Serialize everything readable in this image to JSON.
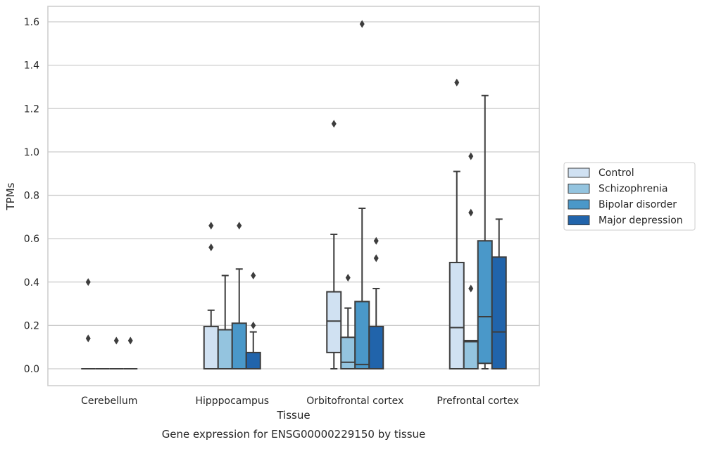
{
  "chart_data": {
    "type": "box",
    "xlabel": "Tissue",
    "ylabel": "TPMs",
    "caption": "Gene expression for ENSG00000229150 by tissue",
    "ylim": [
      -0.08,
      1.67
    ],
    "yticks": [
      0.0,
      0.2,
      0.4,
      0.6,
      0.8,
      1.0,
      1.2,
      1.4,
      1.6
    ],
    "ytick_labels": [
      "0.0",
      "0.2",
      "0.4",
      "0.6",
      "0.8",
      "1.0",
      "1.2",
      "1.4",
      "1.6"
    ],
    "grid": "horizontal",
    "legend_position": "right",
    "categories": [
      "Cerebellum",
      "Hipppocampus",
      "Orbitofrontal cortex",
      "Prefrontal cortex"
    ],
    "series": [
      {
        "name": "Control",
        "color": "#d0e1f2",
        "boxes": [
          {
            "whislo": 0.0,
            "q1": 0.0,
            "med": 0.0,
            "q3": 0.0,
            "whishi": 0.0,
            "fliers": [
              0.4,
              0.14
            ]
          },
          {
            "whislo": 0.0,
            "q1": 0.0,
            "med": 0.0,
            "q3": 0.195,
            "whishi": 0.27,
            "fliers": [
              0.56,
              0.66
            ]
          },
          {
            "whislo": 0.0,
            "q1": 0.075,
            "med": 0.22,
            "q3": 0.355,
            "whishi": 0.62,
            "fliers": [
              1.13
            ]
          },
          {
            "whislo": 0.0,
            "q1": 0.0,
            "med": 0.19,
            "q3": 0.49,
            "whishi": 0.91,
            "fliers": [
              1.32
            ]
          }
        ]
      },
      {
        "name": "Schizophrenia",
        "color": "#94c4df",
        "boxes": [
          {
            "whislo": 0.0,
            "q1": 0.0,
            "med": 0.0,
            "q3": 0.0,
            "whishi": 0.0,
            "fliers": []
          },
          {
            "whislo": 0.0,
            "q1": 0.0,
            "med": 0.0,
            "q3": 0.18,
            "whishi": 0.43,
            "fliers": []
          },
          {
            "whislo": 0.0,
            "q1": 0.0,
            "med": 0.03,
            "q3": 0.145,
            "whishi": 0.28,
            "fliers": [
              0.42
            ]
          },
          {
            "whislo": 0.0,
            "q1": 0.0,
            "med": 0.125,
            "q3": 0.13,
            "whishi": 0.13,
            "fliers": [
              0.37,
              0.72,
              0.98
            ]
          }
        ]
      },
      {
        "name": "Bipolar disorder",
        "color": "#4a98c9",
        "boxes": [
          {
            "whislo": 0.0,
            "q1": 0.0,
            "med": 0.0,
            "q3": 0.0,
            "whishi": 0.0,
            "fliers": [
              0.13
            ]
          },
          {
            "whislo": 0.0,
            "q1": 0.0,
            "med": 0.0,
            "q3": 0.21,
            "whishi": 0.46,
            "fliers": [
              0.66
            ]
          },
          {
            "whislo": 0.0,
            "q1": 0.0,
            "med": 0.02,
            "q3": 0.31,
            "whishi": 0.74,
            "fliers": [
              1.59
            ]
          },
          {
            "whislo": 0.0,
            "q1": 0.025,
            "med": 0.24,
            "q3": 0.59,
            "whishi": 1.26,
            "fliers": []
          }
        ]
      },
      {
        "name": "Major depression",
        "color": "#2164ab",
        "boxes": [
          {
            "whislo": 0.0,
            "q1": 0.0,
            "med": 0.0,
            "q3": 0.0,
            "whishi": 0.0,
            "fliers": [
              0.13
            ]
          },
          {
            "whislo": 0.0,
            "q1": 0.0,
            "med": 0.0,
            "q3": 0.075,
            "whishi": 0.17,
            "fliers": [
              0.2,
              0.43
            ]
          },
          {
            "whislo": 0.0,
            "q1": 0.0,
            "med": 0.0,
            "q3": 0.195,
            "whishi": 0.37,
            "fliers": [
              0.51,
              0.59
            ]
          },
          {
            "whislo": 0.0,
            "q1": 0.0,
            "med": 0.17,
            "q3": 0.515,
            "whishi": 0.69,
            "fliers": []
          }
        ]
      }
    ]
  }
}
